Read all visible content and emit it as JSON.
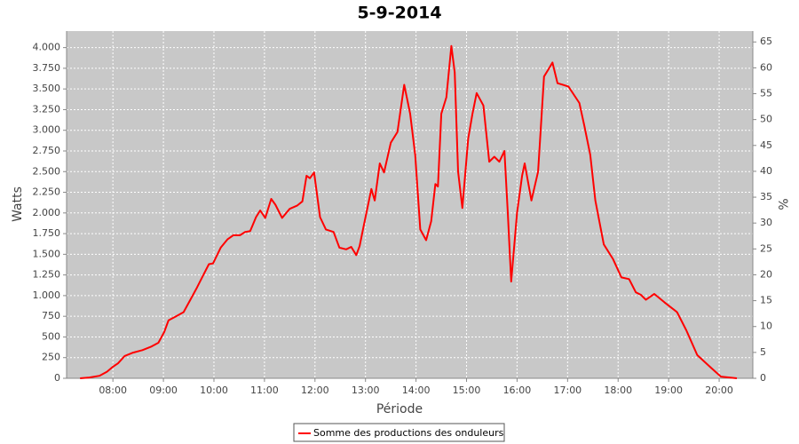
{
  "chart_data": {
    "type": "line",
    "title": "5-9-2014",
    "x_label": "Période",
    "y_label": "Watts",
    "y2_label": "%",
    "grid": true,
    "legend": "bottom",
    "xlim": [
      "07:05",
      "20:40"
    ],
    "xticks": [
      "08:00",
      "09:00",
      "10:00",
      "11:00",
      "12:00",
      "13:00",
      "14:00",
      "15:00",
      "16:00",
      "17:00",
      "18:00",
      "19:00",
      "20:00"
    ],
    "ylim": [
      0,
      4200
    ],
    "yticks": [
      0,
      250,
      500,
      750,
      {
        "value": 1000,
        "label": "1.000"
      },
      {
        "value": 1250,
        "label": "1.250"
      },
      {
        "value": 1500,
        "label": "1.500"
      },
      {
        "value": 1750,
        "label": "1.750"
      },
      {
        "value": 2000,
        "label": "2.000"
      },
      {
        "value": 2250,
        "label": "2.250"
      },
      {
        "value": 2500,
        "label": "2.500"
      },
      {
        "value": 2750,
        "label": "2.750"
      },
      {
        "value": 3000,
        "label": "3.000"
      },
      {
        "value": 3250,
        "label": "3.250"
      },
      {
        "value": 3500,
        "label": "3.500"
      },
      {
        "value": 3750,
        "label": "3.750"
      },
      {
        "value": 4000,
        "label": "4.000"
      }
    ],
    "y2lim": [
      0,
      67.1
    ],
    "y2ticks": [
      0,
      5,
      10,
      15,
      20,
      25,
      30,
      35,
      40,
      45,
      50,
      55,
      60,
      65
    ],
    "x": [
      "07:21",
      "07:32",
      "07:44",
      "07:53",
      "08:00",
      "08:06",
      "08:14",
      "08:24",
      "08:35",
      "08:45",
      "08:54",
      "09:01",
      "09:06",
      "09:15",
      "09:24",
      "09:32",
      "09:40",
      "09:49",
      "09:54",
      "09:59",
      "10:08",
      "10:16",
      "10:23",
      "10:31",
      "10:37",
      "10:43",
      "10:50",
      "10:55",
      "11:01",
      "11:08",
      "11:13",
      "11:21",
      "11:30",
      "11:39",
      "11:45",
      "11:50",
      "11:54",
      "11:59",
      "12:06",
      "12:13",
      "12:22",
      "12:29",
      "12:37",
      "12:43",
      "12:49",
      "12:53",
      "12:58",
      "13:07",
      "13:11",
      "13:17",
      "13:22",
      "13:30",
      "13:38",
      "13:46",
      "13:53",
      "13:59",
      "14:05",
      "14:12",
      "14:18",
      "14:23",
      "14:26",
      "14:30",
      "14:36",
      "14:42",
      "14:46",
      "14:50",
      "14:55",
      "15:02",
      "15:07",
      "15:12",
      "15:20",
      "15:27",
      "15:33",
      "15:39",
      "15:45",
      "15:49",
      "15:53",
      "16:00",
      "16:06",
      "16:09",
      "16:17",
      "16:25",
      "16:32",
      "16:38",
      "16:42",
      "16:48",
      "17:01",
      "17:14",
      "17:20",
      "17:27",
      "17:33",
      "17:43",
      "17:54",
      "18:04",
      "18:13",
      "18:21",
      "18:27",
      "18:33",
      "18:43",
      "18:55",
      "19:10",
      "19:21",
      "19:34",
      "19:50",
      "20:02",
      "20:21"
    ],
    "series": [
      {
        "name": "Somme des productions des onduleurs",
        "color": "#ff0000",
        "values": [
          0,
          10,
          30,
          80,
          140,
          180,
          270,
          310,
          340,
          380,
          430,
          560,
          700,
          750,
          800,
          950,
          1100,
          1280,
          1380,
          1390,
          1580,
          1680,
          1730,
          1730,
          1770,
          1780,
          1950,
          2030,
          1940,
          2170,
          2100,
          1940,
          2050,
          2090,
          2140,
          2450,
          2420,
          2490,
          1950,
          1800,
          1770,
          1580,
          1560,
          1590,
          1490,
          1600,
          1850,
          2290,
          2150,
          2600,
          2490,
          2850,
          2980,
          3550,
          3200,
          2700,
          1800,
          1670,
          1900,
          2350,
          2320,
          3200,
          3400,
          4020,
          3700,
          2500,
          2060,
          2900,
          3200,
          3450,
          3300,
          2620,
          2680,
          2620,
          2750,
          2000,
          1170,
          2000,
          2450,
          2600,
          2150,
          2500,
          3650,
          3750,
          3820,
          3570,
          3530,
          3330,
          3050,
          2700,
          2150,
          1620,
          1440,
          1220,
          1200,
          1040,
          1010,
          950,
          1020,
          920,
          800,
          580,
          280,
          130,
          20,
          0
        ]
      }
    ]
  }
}
